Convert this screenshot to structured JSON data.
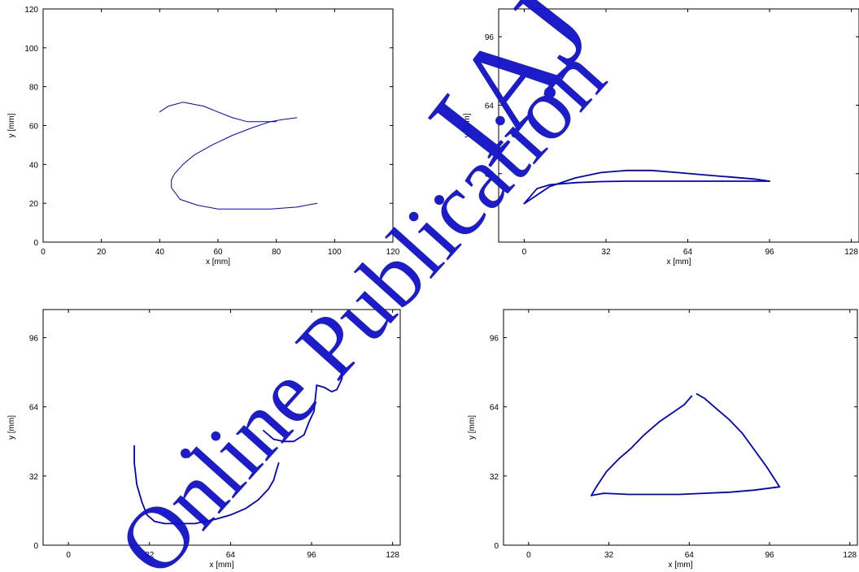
{
  "colors": {
    "series": "#0000cc",
    "watermark": "#1010c8",
    "axes": "#000000"
  },
  "watermark": {
    "line1": "IAJ",
    "line2": "Online Publication"
  },
  "chart_data": [
    {
      "type": "line",
      "title": "",
      "xlabel": "x [mm]",
      "ylabel": "y [mm]",
      "xlim": [
        0,
        120
      ],
      "ylim": [
        0,
        120
      ],
      "xticks": [
        0,
        20,
        40,
        60,
        80,
        100,
        120
      ],
      "yticks": [
        0,
        20,
        40,
        60,
        80,
        100,
        120
      ],
      "grid": false,
      "series": [
        {
          "x": [
            40,
            43,
            48,
            55,
            60,
            65,
            70,
            74,
            78,
            80,
            78,
            72,
            65,
            58,
            52,
            48,
            45,
            44,
            44,
            47,
            53,
            60,
            68,
            78,
            87,
            94
          ],
          "y": [
            67,
            70,
            72,
            70,
            67,
            64,
            62,
            62,
            62,
            62,
            62,
            59,
            55,
            50,
            45,
            40,
            35,
            32,
            28,
            22,
            19,
            17,
            17,
            17,
            18,
            20
          ]
        },
        {
          "x": [
            78,
            82,
            87
          ],
          "y": [
            62,
            63,
            64
          ]
        }
      ]
    },
    {
      "type": "line",
      "title": "",
      "xlabel": "x [mm]",
      "ylabel": "y [mm]",
      "xlim": [
        -10,
        131
      ],
      "ylim": [
        0,
        109
      ],
      "xticks": [
        0,
        32,
        64,
        96,
        128
      ],
      "yticks": [
        32,
        64,
        96
      ],
      "grid": false,
      "series": [
        {
          "x": [
            0,
            5,
            10,
            20,
            30,
            40,
            50,
            60,
            70,
            80,
            90,
            96
          ],
          "y": [
            18,
            22,
            26,
            30,
            32.5,
            33.5,
            33.5,
            32.5,
            31.5,
            30.5,
            29.5,
            28.5
          ]
        },
        {
          "x": [
            96,
            90,
            80,
            70,
            60,
            50,
            40,
            30,
            20,
            10,
            5,
            0
          ],
          "y": [
            28.5,
            28.5,
            28.5,
            28.5,
            28.5,
            28.5,
            28.5,
            28.3,
            27.8,
            26.8,
            25,
            18
          ]
        }
      ]
    },
    {
      "type": "line",
      "title": "",
      "xlabel": "x [mm]",
      "ylabel": "y [mm]",
      "xlim": [
        -10,
        131
      ],
      "ylim": [
        0,
        109
      ],
      "xticks": [
        0,
        32,
        64,
        96,
        128
      ],
      "yticks": [
        0,
        32,
        64,
        96
      ],
      "grid": false,
      "series": [
        {
          "x": [
            26,
            26,
            27,
            29,
            31,
            34,
            38,
            42,
            50,
            58,
            64,
            70,
            75,
            79,
            81,
            82,
            83
          ],
          "y": [
            46,
            38,
            28,
            20,
            14,
            11,
            10,
            10,
            10,
            12,
            14,
            17,
            21,
            26,
            30,
            34,
            38
          ]
        },
        {
          "x": [
            77,
            81,
            85,
            89,
            93,
            95,
            97,
            98
          ],
          "y": [
            53,
            49,
            48,
            48,
            51,
            57,
            62,
            74
          ]
        },
        {
          "x": [
            98,
            101,
            104,
            106,
            108,
            108
          ],
          "y": [
            74,
            73,
            71,
            72,
            77,
            83
          ]
        }
      ]
    },
    {
      "type": "line",
      "title": "",
      "xlabel": "x [mm]",
      "ylabel": "y [mm]",
      "xlim": [
        -10,
        131
      ],
      "ylim": [
        0,
        109
      ],
      "xticks": [
        0,
        32,
        64,
        96,
        128
      ],
      "yticks": [
        0,
        32,
        64,
        96
      ],
      "grid": false,
      "series": [
        {
          "x": [
            65,
            62,
            57,
            52,
            46,
            41,
            36,
            31,
            27,
            25
          ],
          "y": [
            69,
            65,
            61,
            57,
            51,
            45,
            40,
            34,
            27,
            23
          ]
        },
        {
          "x": [
            25,
            30,
            40,
            50,
            60,
            70,
            80,
            90,
            100
          ],
          "y": [
            23,
            24,
            23.5,
            23.5,
            23.5,
            24,
            24.5,
            25.5,
            27
          ]
        },
        {
          "x": [
            100,
            95,
            90,
            85,
            80,
            75,
            70,
            67
          ],
          "y": [
            27,
            36,
            44,
            52,
            58,
            63,
            68,
            70
          ]
        }
      ]
    }
  ]
}
